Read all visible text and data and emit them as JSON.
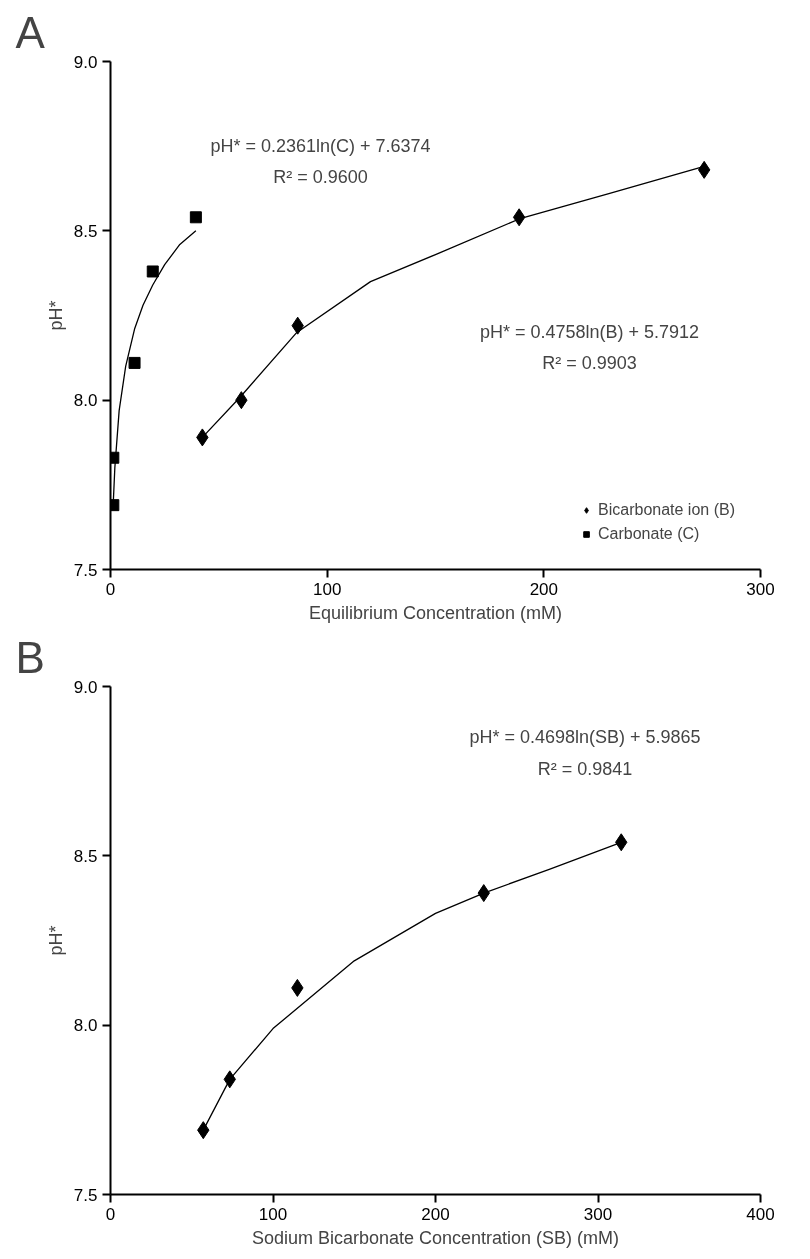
{
  "chart_data": [
    {
      "type": "scatter",
      "xlabel": "Equilibrium Concentration (mM)",
      "ylabel": "pH*",
      "xlim": [
        0,
        300
      ],
      "xticks": [
        0,
        100,
        200,
        300
      ],
      "ylim": [
        7.5,
        9.0
      ],
      "yticks": [
        {
          "value": 7.5,
          "label": "7.5"
        },
        {
          "value": 8.0,
          "label": "8.0"
        },
        {
          "value": 8.5,
          "label": "8.5"
        },
        {
          "value": 9.0,
          "label": "9.0"
        }
      ],
      "legend": "bottom right",
      "annotations": [
        "A",
        "pH* = 0.2361ln(C) + 7.6374",
        "R² = 0.9600",
        "pH* = 0.4758ln(B) + 5.7912",
        "R² = 0.9903"
      ],
      "series": [
        {
          "type": "line",
          "color": "#000000",
          "line_style": "solid",
          "x": [
            42.4,
            60,
            86,
            120,
            150,
            188.6,
            230,
            274
          ],
          "values": [
            7.89,
            8.01,
            8.2,
            8.35,
            8.43,
            8.535,
            8.61,
            8.69
          ]
        },
        {
          "type": "line",
          "color": "#000000",
          "line_style": "solid",
          "x": [
            1.3,
            2,
            4,
            7,
            11.1,
            15,
            19.5,
            25,
            32,
            39.4
          ],
          "values": [
            7.7,
            7.8,
            7.97,
            8.1,
            8.21,
            8.28,
            8.34,
            8.4,
            8.46,
            8.5
          ]
        },
        {
          "name": "Bicarbonate ion (B)",
          "color": "#000000",
          "marker": "diamond",
          "x": [
            42.4,
            60.4,
            86.4,
            188.6,
            274
          ],
          "values": [
            7.89,
            8.0,
            8.22,
            8.54,
            8.68
          ]
        },
        {
          "name": "Carbonate (C)",
          "color": "#000000",
          "marker": "square",
          "x": [
            1.3,
            1.3,
            11.1,
            19.5,
            39.4
          ],
          "values": [
            7.69,
            7.83,
            8.11,
            8.38,
            8.54
          ]
        }
      ]
    },
    {
      "type": "scatter",
      "xlabel": "Sodium Bicarbonate Concentration (SB) (mM)",
      "ylabel": "pH*",
      "xlim": [
        0,
        400
      ],
      "xticks": [
        0,
        100,
        200,
        300,
        400
      ],
      "ylim": [
        7.5,
        9.0
      ],
      "yticks": [
        {
          "value": 7.5,
          "label": "7.5"
        },
        {
          "value": 8.0,
          "label": "8.0"
        },
        {
          "value": 8.5,
          "label": "8.5"
        },
        {
          "value": 9.0,
          "label": "9.0"
        }
      ],
      "annotations": [
        "B",
        "pH* = 0.4698ln(SB) + 5.9865",
        "R² = 0.9841"
      ],
      "series": [
        {
          "type": "line",
          "color": "#000000",
          "line_style": "solid",
          "x": [
            57.1,
            73.4,
            100,
            150,
            200,
            229.7,
            270,
            314.3
          ],
          "values": [
            7.69,
            7.84,
            7.99,
            8.19,
            8.33,
            8.39,
            8.46,
            8.54
          ]
        },
        {
          "color": "#000000",
          "marker": "diamond",
          "x": [
            57.1,
            73.4,
            115,
            229.7,
            314.3
          ],
          "values": [
            7.69,
            7.84,
            8.11,
            8.39,
            8.54
          ]
        }
      ]
    }
  ]
}
